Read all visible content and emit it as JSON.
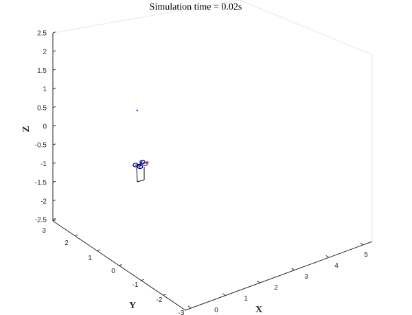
{
  "figure": {
    "title": "Simulation time = 0.02s",
    "xlabel": "X",
    "ylabel": "Y",
    "zlabel": "Z",
    "colors": {
      "axis": "#262626",
      "box_edge": "#e6e6e6",
      "drone_body": "#000080",
      "drone_rotor": "#4040a0",
      "heading_marker": "#d04020",
      "trail": "#000000",
      "reference_point": "#0000cc"
    }
  },
  "axes": {
    "x_ticks": [
      "0",
      "1",
      "2",
      "3",
      "4",
      "5"
    ],
    "y_ticks": [
      "3",
      "2",
      "1",
      "0",
      "-1",
      "-2",
      "-3"
    ],
    "z_ticks": [
      "2.5",
      "2",
      "1.5",
      "1",
      "0.5",
      "0",
      "-0.5",
      "-1",
      "-1.5",
      "-2",
      "-2.5"
    ],
    "xlim": [
      0,
      5
    ],
    "ylim": [
      -3,
      3
    ],
    "zlim": [
      -2.5,
      2.5
    ],
    "view": "3d-isometric",
    "grid": false
  },
  "scene": {
    "reference_marker_icon": "target-dot",
    "drone_icon": "quadrotor"
  }
}
